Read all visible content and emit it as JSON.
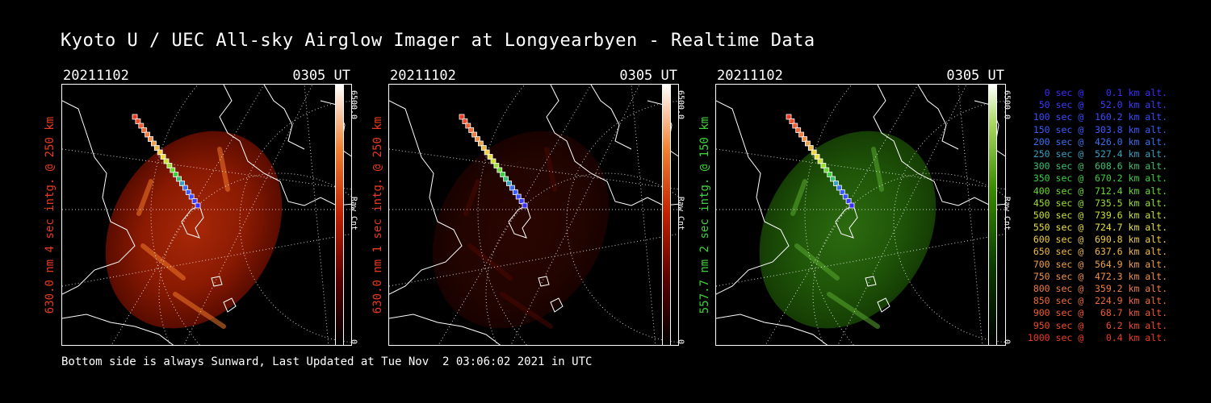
{
  "title": "Kyoto U / UEC All-sky Airglow Imager at Longyearbyen - Realtime Data",
  "panels": [
    {
      "date": "20211102",
      "time": "0305 UT",
      "ylabel": "630.0 nm 4 sec intg. @ 250 km",
      "ylabel_color": "#e83a1f",
      "cbar_max": "6500.0",
      "cbar_min": "0",
      "cbar_unit": "Raw Cnt",
      "palette": "red"
    },
    {
      "date": "20211102",
      "time": "0305 UT",
      "ylabel": "630.0 nm 1 sec intg. @ 250 km",
      "ylabel_color": "#e83a1f",
      "cbar_max": "6500.0",
      "cbar_min": "0",
      "cbar_unit": "Raw Cnt",
      "palette": "red"
    },
    {
      "date": "20211102",
      "time": "0305 UT",
      "ylabel": "557.7 nm 2 sec intg. @ 150 km",
      "ylabel_color": "#3fd43a",
      "cbar_max": "6500.0",
      "cbar_min": "0",
      "cbar_unit": "Raw Cnt",
      "palette": "green"
    }
  ],
  "legend": [
    {
      "text": "0 sec @    0.1 km alt.",
      "color": "#3a2cff"
    },
    {
      "text": "50 sec @   52.0 km alt.",
      "color": "#3a3cff"
    },
    {
      "text": "100 sec @  160.2 km alt.",
      "color": "#3a4cff"
    },
    {
      "text": "150 sec @  303.8 km alt.",
      "color": "#3a5cff"
    },
    {
      "text": "200 sec @  426.0 km alt.",
      "color": "#3a70f0"
    },
    {
      "text": "250 sec @  527.4 km alt.",
      "color": "#3aa0c0"
    },
    {
      "text": "300 sec @  608.6 km alt.",
      "color": "#3ac070"
    },
    {
      "text": "350 sec @  670.2 km alt.",
      "color": "#3ad040"
    },
    {
      "text": "400 sec @  712.4 km alt.",
      "color": "#6ad830"
    },
    {
      "text": "450 sec @  735.5 km alt.",
      "color": "#9ae030"
    },
    {
      "text": "500 sec @  739.6 km alt.",
      "color": "#c8e030"
    },
    {
      "text": "550 sec @  724.7 km alt.",
      "color": "#e8e040"
    },
    {
      "text": "600 sec @  690.8 km alt.",
      "color": "#f0d040"
    },
    {
      "text": "650 sec @  637.6 km alt.",
      "color": "#f0b848"
    },
    {
      "text": "700 sec @  564.9 km alt.",
      "color": "#f0a048"
    },
    {
      "text": "750 sec @  472.3 km alt.",
      "color": "#f09048"
    },
    {
      "text": "800 sec @  359.2 km alt.",
      "color": "#f07c40"
    },
    {
      "text": "850 sec @  224.9 km alt.",
      "color": "#f06a38"
    },
    {
      "text": "900 sec @   68.7 km alt.",
      "color": "#f05a30"
    },
    {
      "text": "950 sec @    6.2 km alt.",
      "color": "#f04a28"
    },
    {
      "text": "1000 sec @    0.4 km alt.",
      "color": "#f03a20"
    }
  ],
  "footer": "Bottom side is always Sunward, Last Updated at Tue Nov  2 03:06:02 2021 in UTC"
}
